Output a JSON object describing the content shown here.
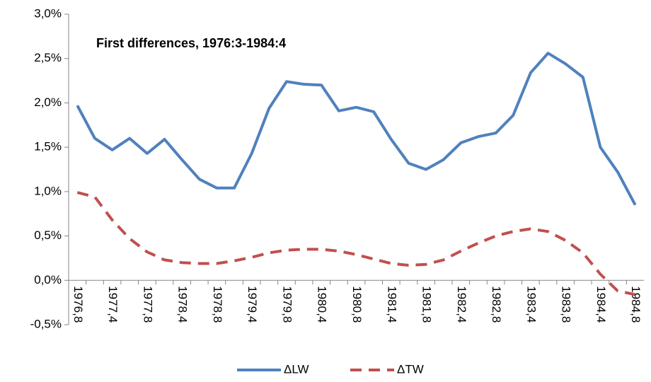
{
  "chart_data": {
    "type": "line",
    "title": "First differences, 1976:3-1984:4",
    "categories": [
      "1976,8",
      null,
      "1977,4",
      null,
      "1977,8",
      null,
      "1978,4",
      null,
      "1978,8",
      null,
      "1979,4",
      null,
      "1979,8",
      null,
      "1980,4",
      null,
      "1980,8",
      null,
      "1981,4",
      null,
      "1981,8",
      null,
      "1982,4",
      null,
      "1982,8",
      null,
      "1983,4",
      null,
      "1983,8",
      null,
      "1984,4",
      null,
      "1984,8"
    ],
    "series": [
      {
        "name": "ΔLW",
        "color": "#4f81bd",
        "linestyle": "solid",
        "values": [
          1.97,
          1.6,
          1.47,
          1.6,
          1.43,
          1.59,
          1.36,
          1.14,
          1.04,
          1.04,
          1.43,
          1.94,
          2.24,
          2.21,
          2.2,
          1.91,
          1.95,
          1.9,
          1.59,
          1.32,
          1.25,
          1.36,
          1.55,
          1.62,
          1.66,
          1.86,
          2.34,
          2.56,
          2.44,
          2.29,
          1.5,
          1.22,
          0.85
        ]
      },
      {
        "name": "ΔTW",
        "color": "#c0504d",
        "linestyle": "dashed",
        "values": [
          0.99,
          0.94,
          0.68,
          0.47,
          0.32,
          0.23,
          0.2,
          0.19,
          0.19,
          0.22,
          0.26,
          0.31,
          0.34,
          0.35,
          0.35,
          0.33,
          0.29,
          0.24,
          0.19,
          0.17,
          0.18,
          0.23,
          0.33,
          0.42,
          0.5,
          0.55,
          0.58,
          0.55,
          0.45,
          0.31,
          0.07,
          -0.12,
          -0.16
        ]
      }
    ],
    "ylim": [
      -0.5,
      3.0
    ],
    "yticks": [
      {
        "value": -0.5,
        "label": "-0,5%"
      },
      {
        "value": 0,
        "label": "0,0%"
      },
      {
        "value": 0.5,
        "label": "0,5%"
      },
      {
        "value": 1.0,
        "label": "1,0%"
      },
      {
        "value": 1.5,
        "label": "1,5%"
      },
      {
        "value": 2.0,
        "label": "2,0%"
      },
      {
        "value": 2.5,
        "label": "2,5%"
      },
      {
        "value": 3.0,
        "label": "3,0%"
      }
    ],
    "grid": false,
    "legend": "bottom"
  }
}
